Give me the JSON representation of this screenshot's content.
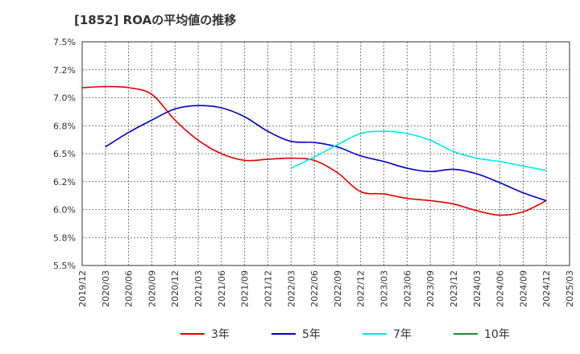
{
  "chart_data": {
    "type": "line",
    "title": "[1852]  ROAの平均値の推移",
    "xlabel": "",
    "ylabel": "",
    "ylim": [
      5.5,
      7.5
    ],
    "y_ticks": [
      "5.5%",
      "5.8%",
      "6.0%",
      "6.2%",
      "6.5%",
      "6.8%",
      "7.0%",
      "7.2%",
      "7.5%"
    ],
    "x_ticks": [
      "2019/12",
      "2020/03",
      "2020/06",
      "2020/09",
      "2020/12",
      "2021/03",
      "2021/06",
      "2021/09",
      "2021/12",
      "2022/03",
      "2022/06",
      "2022/09",
      "2022/12",
      "2023/03",
      "2023/06",
      "2023/09",
      "2023/12",
      "2024/03",
      "2024/06",
      "2024/09",
      "2024/12",
      "2025/03"
    ],
    "grid": true,
    "legend_position": "bottom",
    "series": [
      {
        "name": "3年",
        "color": "#e60000",
        "points": [
          [
            "2019/12",
            7.09
          ],
          [
            "2020/03",
            7.1
          ],
          [
            "2020/06",
            7.09
          ],
          [
            "2020/09",
            7.03
          ],
          [
            "2020/12",
            6.8
          ],
          [
            "2021/03",
            6.62
          ],
          [
            "2021/06",
            6.5
          ],
          [
            "2021/09",
            6.44
          ],
          [
            "2021/12",
            6.45
          ],
          [
            "2022/03",
            6.46
          ],
          [
            "2022/06",
            6.44
          ],
          [
            "2022/09",
            6.33
          ],
          [
            "2022/12",
            6.16
          ],
          [
            "2023/03",
            6.14
          ],
          [
            "2023/06",
            6.1
          ],
          [
            "2023/09",
            6.08
          ],
          [
            "2023/12",
            6.05
          ],
          [
            "2024/03",
            5.99
          ],
          [
            "2024/06",
            5.95
          ],
          [
            "2024/09",
            5.98
          ],
          [
            "2024/12",
            6.08
          ]
        ]
      },
      {
        "name": "5年",
        "color": "#0000cc",
        "points": [
          [
            "2020/03",
            6.56
          ],
          [
            "2020/06",
            6.69
          ],
          [
            "2020/09",
            6.8
          ],
          [
            "2020/12",
            6.9
          ],
          [
            "2021/03",
            6.93
          ],
          [
            "2021/06",
            6.91
          ],
          [
            "2021/09",
            6.83
          ],
          [
            "2021/12",
            6.7
          ],
          [
            "2022/03",
            6.61
          ],
          [
            "2022/06",
            6.6
          ],
          [
            "2022/09",
            6.56
          ],
          [
            "2022/12",
            6.48
          ],
          [
            "2023/03",
            6.43
          ],
          [
            "2023/06",
            6.37
          ],
          [
            "2023/09",
            6.34
          ],
          [
            "2023/12",
            6.36
          ],
          [
            "2024/03",
            6.32
          ],
          [
            "2024/06",
            6.24
          ],
          [
            "2024/09",
            6.15
          ],
          [
            "2024/12",
            6.08
          ]
        ]
      },
      {
        "name": "7年",
        "color": "#00e5ee",
        "points": [
          [
            "2022/03",
            6.37
          ],
          [
            "2022/06",
            6.47
          ],
          [
            "2022/09",
            6.58
          ],
          [
            "2022/12",
            6.68
          ],
          [
            "2023/03",
            6.7
          ],
          [
            "2023/06",
            6.68
          ],
          [
            "2023/09",
            6.62
          ],
          [
            "2023/12",
            6.52
          ],
          [
            "2024/03",
            6.46
          ],
          [
            "2024/06",
            6.43
          ],
          [
            "2024/09",
            6.39
          ],
          [
            "2024/12",
            6.35
          ]
        ]
      },
      {
        "name": "10年",
        "color": "#228b22",
        "points": []
      }
    ]
  }
}
